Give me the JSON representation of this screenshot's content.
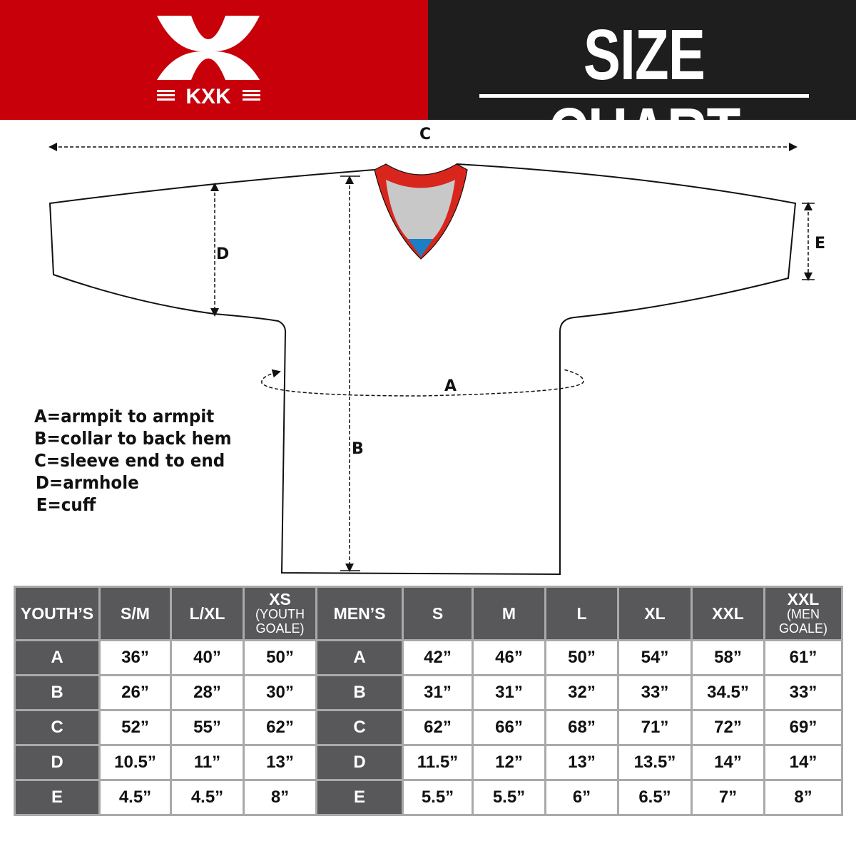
{
  "brand": {
    "logo_text": "KXK",
    "header_color": "#c8000a"
  },
  "title": "SIZE CHART",
  "diagram": {
    "labels": {
      "A": "A",
      "B": "B",
      "C": "C",
      "D": "D",
      "E": "E"
    },
    "legend": [
      "A=armpit to armpit",
      "B=collar to back hem",
      "C=sleeve end to end",
      "D=armhole",
      "E=cuff"
    ],
    "collar_colors": {
      "trim": "#d9261c",
      "inner": "#c8c8c8",
      "tip": "#1a7fc4"
    }
  },
  "table": {
    "youth_header": "YOUTH’S",
    "youth_sizes": [
      {
        "main": "S/M"
      },
      {
        "main": "L/XL"
      },
      {
        "main": "XS",
        "sub": "(YOUTH GOALE)"
      }
    ],
    "men_header": "MEN’S",
    "men_sizes": [
      {
        "main": "S"
      },
      {
        "main": "M"
      },
      {
        "main": "L"
      },
      {
        "main": "XL"
      },
      {
        "main": "XXL"
      },
      {
        "main": "XXL",
        "sub": "(MEN GOALE)"
      }
    ],
    "rows": [
      {
        "label": "A",
        "youth": [
          "36”",
          "40”",
          "50”"
        ],
        "men": [
          "42”",
          "46”",
          "50”",
          "54”",
          "58”",
          "61”"
        ]
      },
      {
        "label": "B",
        "youth": [
          "26”",
          "28”",
          "30”"
        ],
        "men": [
          "31”",
          "31”",
          "32”",
          "33”",
          "34.5”",
          "33”"
        ]
      },
      {
        "label": "C",
        "youth": [
          "52”",
          "55”",
          "62”"
        ],
        "men": [
          "62”",
          "66”",
          "68”",
          "71”",
          "72”",
          "69”"
        ]
      },
      {
        "label": "D",
        "youth": [
          "10.5”",
          "11”",
          "13”"
        ],
        "men": [
          "11.5”",
          "12”",
          "13”",
          "13.5”",
          "14”",
          "14”"
        ]
      },
      {
        "label": "E",
        "youth": [
          "4.5”",
          "4.5”",
          "8”"
        ],
        "men": [
          "5.5”",
          "5.5”",
          "6”",
          "6.5”",
          "7”",
          "8”"
        ]
      }
    ]
  }
}
